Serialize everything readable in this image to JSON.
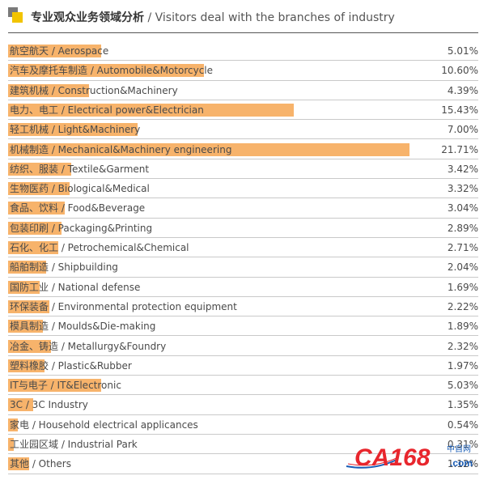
{
  "header": {
    "title_cn": "专业观众业务领域分析",
    "title_sep": " / ",
    "title_en": "Visitors deal with the branches of industry"
  },
  "colors": {
    "bar": "#f7b36b",
    "logo_gray": "#7a7a7a",
    "logo_yellow": "#f2c400",
    "watermark_red": "#e8262d",
    "watermark_blue": "#1a5db5"
  },
  "watermark": {
    "text": "CA168",
    "suffix": ".com",
    "cn": "中自网"
  },
  "chart_data": {
    "type": "bar",
    "orientation": "horizontal",
    "title": "专业观众业务领域分析 / Visitors deal with the branches of industry",
    "value_suffix": "%",
    "categories": [
      "航空航天 / Aerospace",
      "汽车及摩托车制造 / Automobile&Motorcycle",
      "建筑机械 / Construction&Machinery",
      "电力、电工 / Electrical power&Electrician",
      "轻工机械 / Light&Machinery",
      "机械制造 / Mechanical&Machinery engineering",
      "纺织、服装 / Textile&Garment",
      "生物医药 / Biological&Medical",
      "食品、饮料 / Food&Beverage",
      "包装印刷 / Packaging&Printing",
      "石化、化工 / Petrochemical&Chemical",
      "船舶制造 / Shipbuilding",
      "国防工业 / National defense",
      "环保装备 / Environmental protection equipment",
      "模具制造 / Moulds&Die-making",
      "冶金、铸造 / Metallurgy&Foundry",
      "塑料橡胶 / Plastic&Rubber",
      "IT与电子 / IT&Electronic",
      "3C / 3C Industry",
      "家电 / Household electrical applicances",
      "工业园区域 / Industrial Park",
      "其他 / Others"
    ],
    "values": [
      5.01,
      10.6,
      4.39,
      15.43,
      7.0,
      21.71,
      3.42,
      3.32,
      3.04,
      2.89,
      2.71,
      2.04,
      1.69,
      2.22,
      1.89,
      2.32,
      1.97,
      5.03,
      1.35,
      0.54,
      0.31,
      1.12
    ],
    "value_labels": [
      "5.01%",
      "10.60%",
      "4.39%",
      "15.43%",
      "7.00%",
      "21.71%",
      "3.42%",
      "3.32%",
      "3.04%",
      "2.89%",
      "2.71%",
      "2.04%",
      "1.69%",
      "2.22%",
      "1.89%",
      "2.32%",
      "1.97%",
      "5.03%",
      "1.35%",
      "0.54%",
      "0.31%",
      "1.12%"
    ],
    "xlim": [
      0,
      22
    ]
  }
}
